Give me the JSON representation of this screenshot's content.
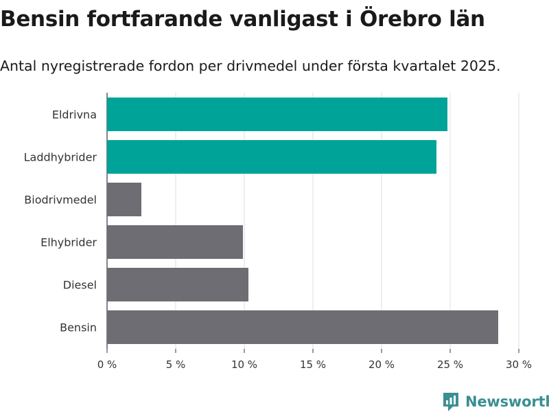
{
  "header": {
    "title": "Bensin fortfarande vanligast i Örebro län",
    "subtitle": "Antal nyregistrerade fordon per drivmedel under första kvartalet 2025."
  },
  "brand": {
    "name": "Newsworthy",
    "icon": "newsworthy-logo-icon",
    "color": "#3a8f92"
  },
  "chart_data": {
    "type": "bar",
    "orientation": "horizontal",
    "categories": [
      "Eldrivna",
      "Laddhybrider",
      "Biodrivmedel",
      "Elhybrider",
      "Diesel",
      "Bensin"
    ],
    "values": [
      24.8,
      24.0,
      2.5,
      9.9,
      10.3,
      28.5
    ],
    "colors": [
      "#00a398",
      "#00a398",
      "#6d6d73",
      "#6d6d73",
      "#6d6d73",
      "#6d6d73"
    ],
    "xlim": [
      0,
      30
    ],
    "xticks": [
      0,
      5,
      10,
      15,
      20,
      25,
      30
    ],
    "tick_suffix": " %",
    "grid": true,
    "xlabel": "",
    "ylabel": ""
  }
}
